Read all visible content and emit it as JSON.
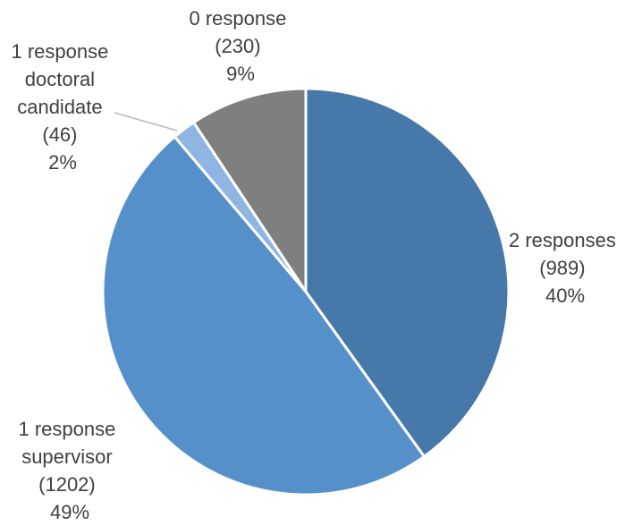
{
  "chart_data": {
    "type": "pie",
    "start_angle_deg": 0,
    "direction": "clockwise",
    "slices": [
      {
        "name": "2 responses",
        "label_lines": [
          "2 responses"
        ],
        "count": 989,
        "count_text": "(989)",
        "percent_text": "40%",
        "color": "#4679aa"
      },
      {
        "name": "1 response supervisor",
        "label_lines": [
          "1 response",
          "supervisor"
        ],
        "count": 1202,
        "count_text": "(1202)",
        "percent_text": "49%",
        "color": "#5690ca"
      },
      {
        "name": "1 response doctoral candidate",
        "label_lines": [
          "1 response",
          "doctoral",
          "candidate"
        ],
        "count": 46,
        "count_text": "(46)",
        "percent_text": "2%",
        "color": "#8fb5e2"
      },
      {
        "name": "0 response",
        "label_lines": [
          "0 response"
        ],
        "count": 230,
        "count_text": "(230)",
        "percent_text": "9%",
        "color": "#7f7f7f"
      }
    ]
  }
}
